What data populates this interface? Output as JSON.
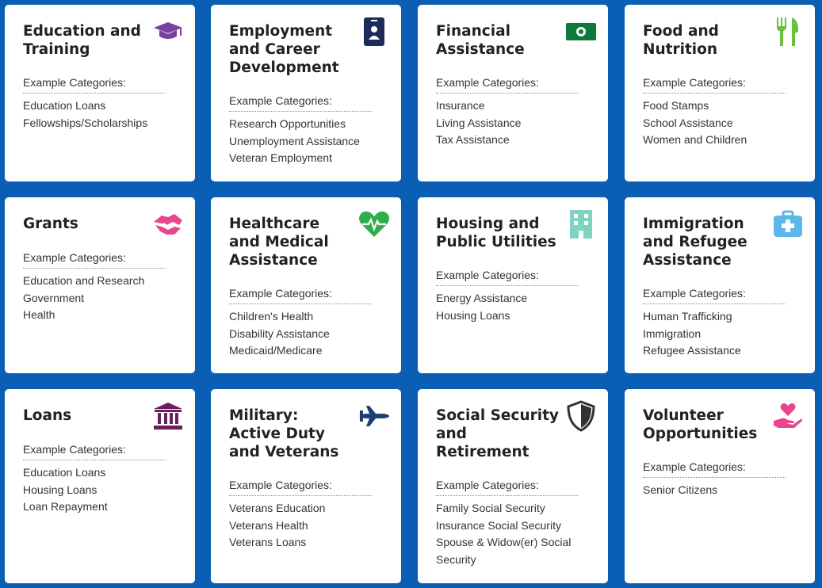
{
  "example_label": "Example Categories:",
  "cards": [
    {
      "title": "Education and\nTraining",
      "icon": "graduation-cap-icon",
      "icon_color": "#7b3f9e",
      "items": [
        "Education Loans",
        "Fellowships/Scholarships"
      ]
    },
    {
      "title": "Employment\nand Career\nDevelopment",
      "icon": "id-badge-icon",
      "icon_color": "#1d2a5c",
      "items": [
        "Research Opportunities",
        "Unemployment Assistance",
        "Veteran Employment"
      ]
    },
    {
      "title": "Financial\nAssistance",
      "icon": "banknote-icon",
      "icon_color": "#0b7a3b",
      "items": [
        "Insurance",
        "Living Assistance",
        "Tax Assistance"
      ]
    },
    {
      "title": "Food and\nNutrition",
      "icon": "fork-knife-icon",
      "icon_color": "#69c23a",
      "items": [
        "Food Stamps",
        "School Assistance",
        "Women and Children"
      ]
    },
    {
      "title": "Grants",
      "icon": "handshake-icon",
      "icon_color": "#e8478f",
      "items": [
        "Education and Research",
        "Government",
        "Health"
      ]
    },
    {
      "title": "Healthcare\nand Medical\nAssistance",
      "icon": "heartbeat-icon",
      "icon_color": "#2fae4e",
      "items": [
        "Children's Health",
        "Disability Assistance",
        "Medicaid/Medicare"
      ]
    },
    {
      "title": "Housing and\nPublic Utilities",
      "icon": "building-icon",
      "icon_color": "#7fd3c0",
      "items": [
        "Energy Assistance",
        "Housing Loans"
      ]
    },
    {
      "title": "Immigration\nand Refugee\nAssistance",
      "icon": "first-aid-kit-icon",
      "icon_color": "#5bb8e8",
      "items": [
        "Human Trafficking",
        "Immigration",
        "Refugee Assistance"
      ]
    },
    {
      "title": "Loans",
      "icon": "bank-icon",
      "icon_color": "#6b1f5c",
      "items": [
        "Education Loans",
        "Housing Loans",
        "Loan Repayment"
      ]
    },
    {
      "title": "Military:\nActive Duty\nand Veterans",
      "icon": "fighter-jet-icon",
      "icon_color": "#1d3f73",
      "items": [
        "Veterans Education",
        "Veterans Health",
        "Veterans Loans"
      ]
    },
    {
      "title": "Social Security\nand\nRetirement",
      "icon": "shield-icon",
      "icon_color": "#333333",
      "items": [
        "Family Social Security",
        "Insurance Social Security",
        "Spouse & Widow(er) Social Security"
      ]
    },
    {
      "title": "Volunteer\nOpportunities",
      "icon": "hand-heart-icon",
      "icon_color": "#e8478f",
      "items": [
        "Senior Citizens"
      ]
    }
  ]
}
